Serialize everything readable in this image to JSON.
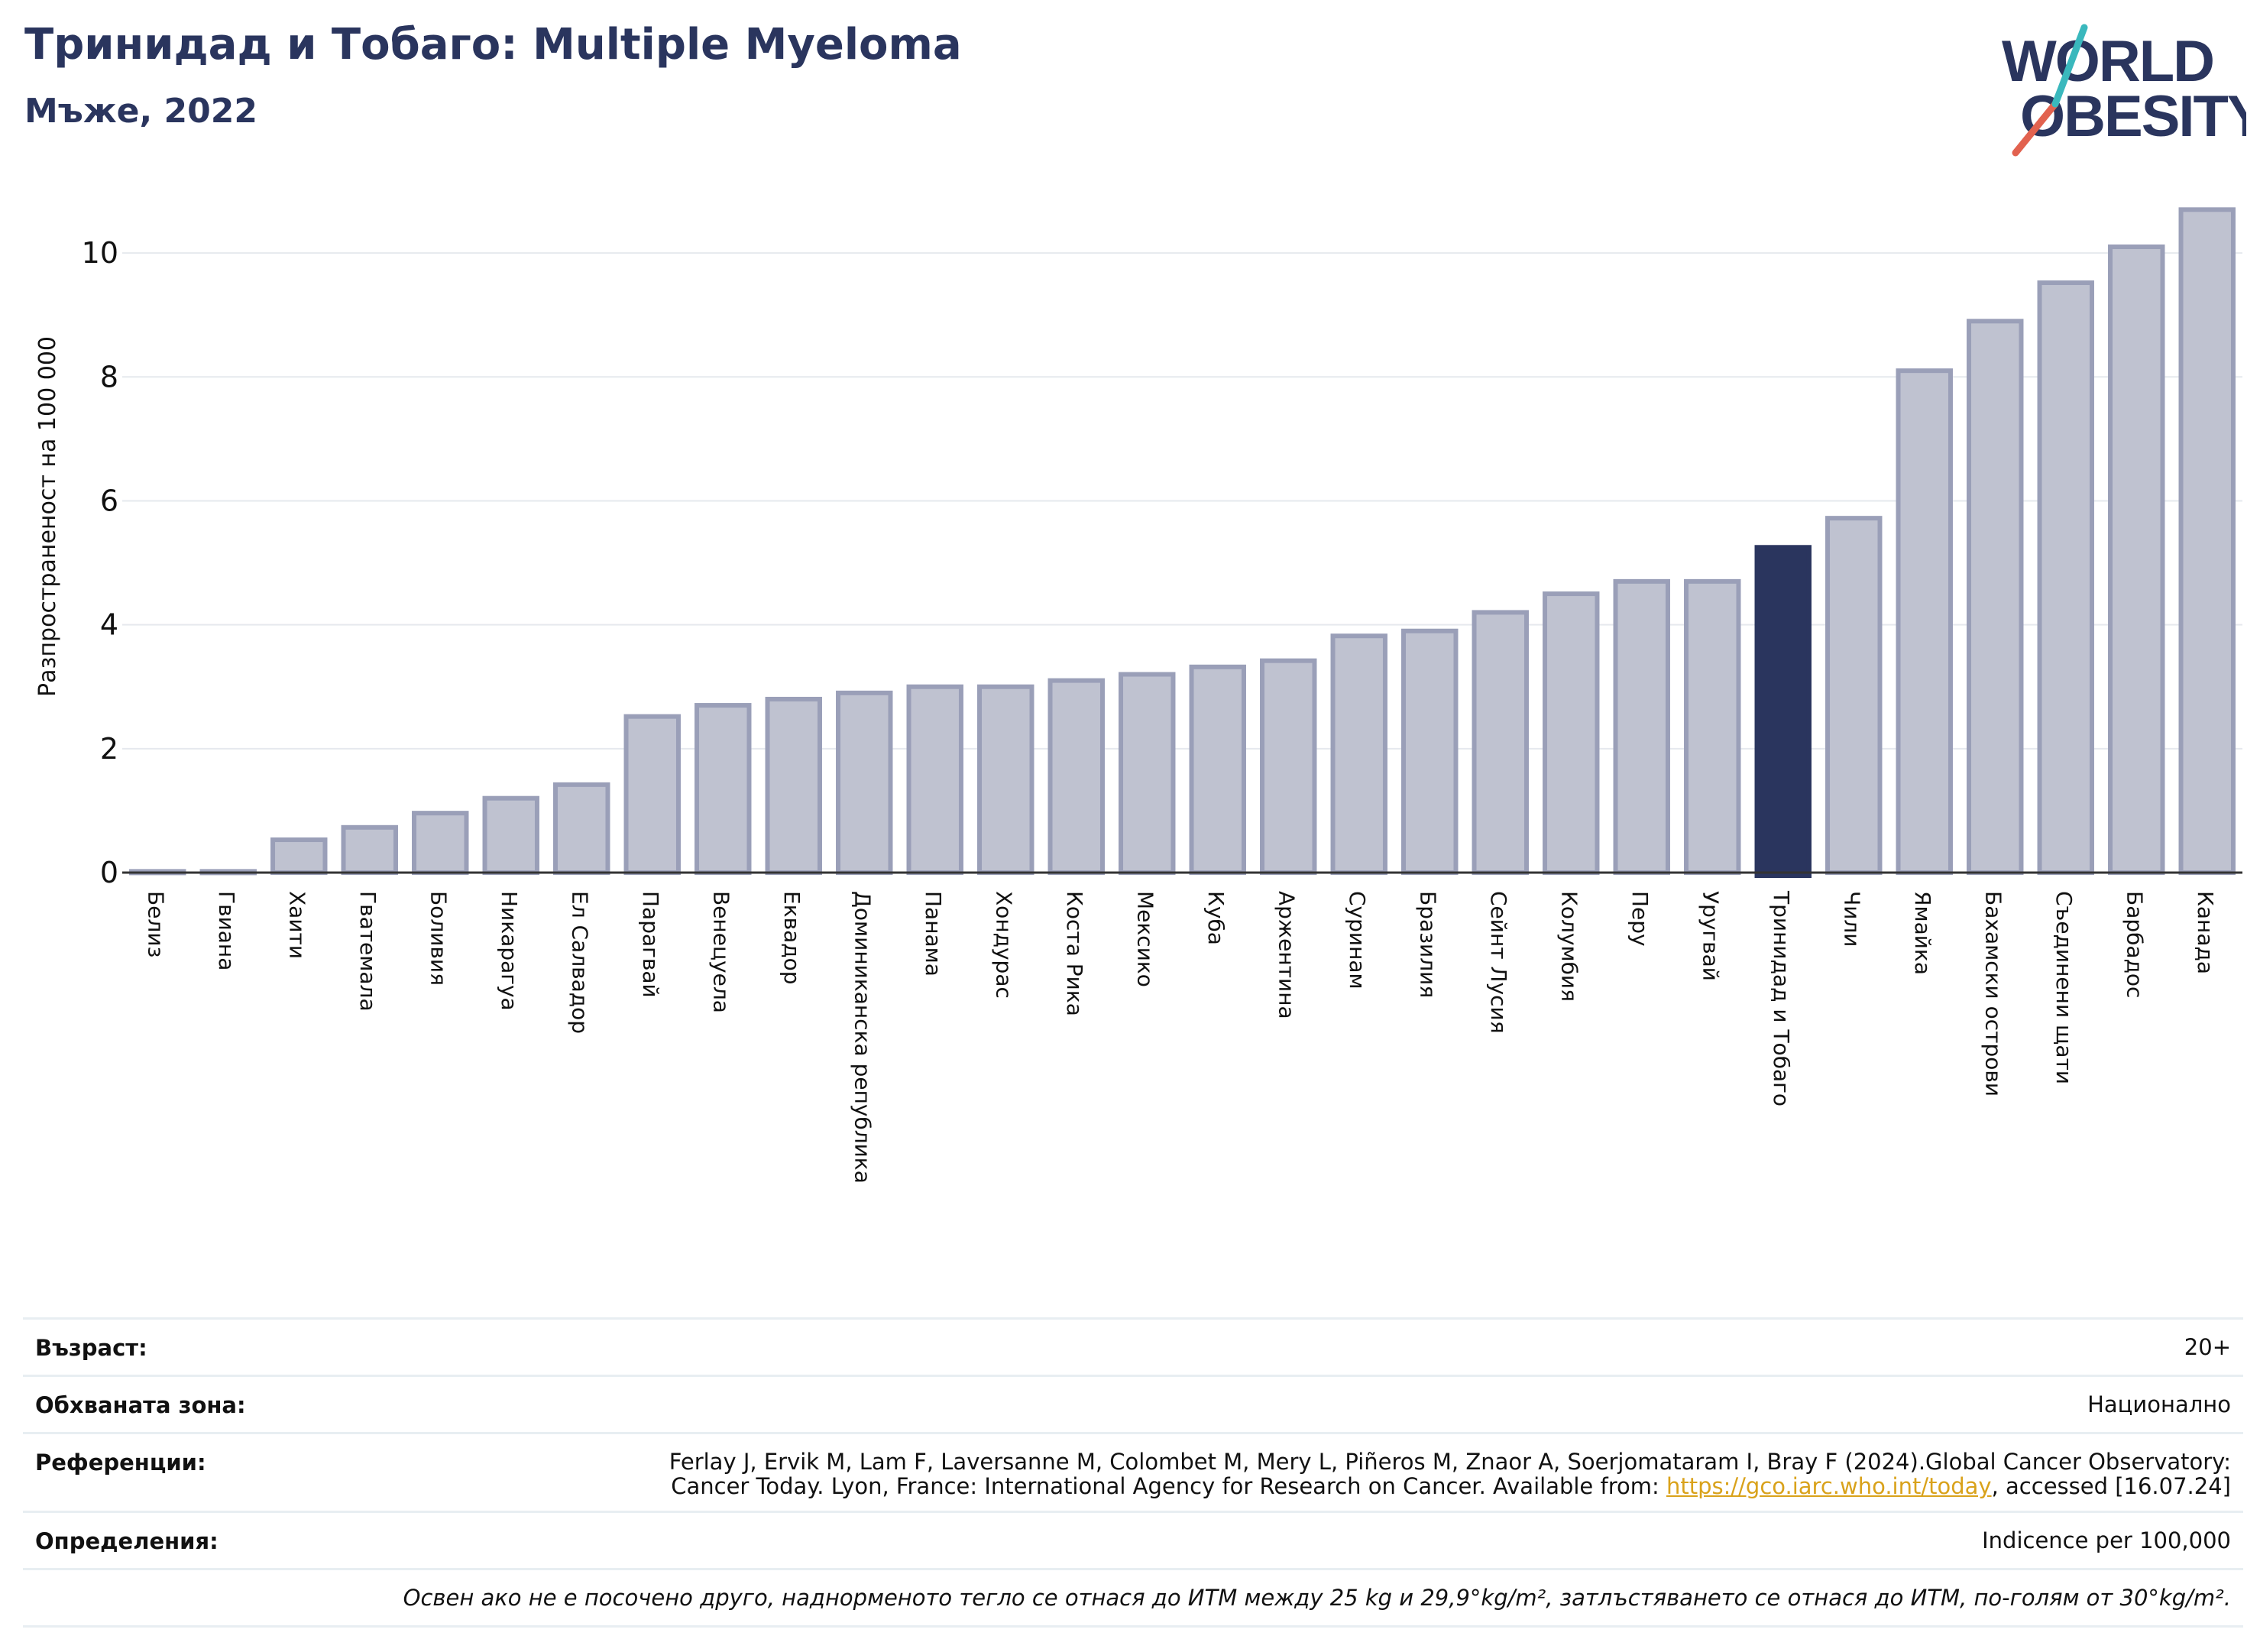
{
  "header": {
    "title": "Тринидад и Тобаго: Multiple Myeloma",
    "subtitle": "Мъже, 2022"
  },
  "logo": {
    "line1": "WORLD",
    "line2": "OBESITY"
  },
  "colors": {
    "highlight": "#2a355e",
    "bar": "#bfc2d0",
    "bar_edge": "#9a9fb8",
    "title": "#2a355e",
    "logo_teal": "#3ab8bd",
    "logo_red": "#e2624f"
  },
  "chart_data": {
    "type": "bar",
    "ylabel": "Разпространеност  на 100 000",
    "ylim": [
      0,
      11
    ],
    "yticks": [
      0,
      2,
      4,
      6,
      8,
      10
    ],
    "highlight": "Тринидад и Тобаго",
    "grid": true,
    "categories": [
      "Белиз",
      "Гвиана",
      "Хаити",
      "Гватемала",
      "Боливия",
      "Никарагуа",
      "Ел Салвадор",
      "Парагвай",
      "Венецуела",
      "Еквадор",
      "Доминиканска република",
      "Панама",
      "Хондурас",
      "Коста Рика",
      "Мексико",
      "Куба",
      "Аржентина",
      "Суринам",
      "Бразилия",
      "Сейнт Лусия",
      "Колумбия",
      "Перу",
      "Уругвай",
      "Тринидад и Тобаго",
      "Чили",
      "Ямайка",
      "Бахамски острови",
      "Съединени щати",
      "Барбадос",
      "Канада"
    ],
    "values": [
      0.02,
      0.02,
      0.53,
      0.73,
      0.96,
      1.2,
      1.42,
      2.52,
      2.7,
      2.8,
      2.9,
      3.0,
      3.0,
      3.1,
      3.2,
      3.32,
      3.42,
      3.82,
      3.9,
      4.2,
      4.5,
      4.7,
      4.7,
      5.25,
      5.72,
      8.1,
      8.9,
      9.52,
      10.1,
      10.7
    ]
  },
  "info": {
    "age_label": "Възраст:",
    "age_value": "20+",
    "coverage_label": "Обхваната зона:",
    "coverage_value": "Национално",
    "references_label": "Референции:",
    "references_line1": "Ferlay J, Ervik M, Lam F, Laversanne M, Colombet M, Mery L, Piñeros M, Znaor A, Soerjomataram I, Bray F (2024).Global Cancer Observatory:",
    "references_line2_pre": "Cancer Today. Lyon, France: International Agency for Research on Cancer. Available from: ",
    "references_link": "https://gco.iarc.who.int/today",
    "references_line2_post": ", accessed [16.07.24]",
    "definitions_label": "Определения:",
    "definitions_value": "Indicence per 100,000",
    "footnote": "Освен ако не е посочено друго, наднорменото тегло се отнася до ИТМ между 25 kg и 29,9°kg/m², затлъстяването се отнася до ИТМ, по-голям от 30°kg/m²."
  }
}
